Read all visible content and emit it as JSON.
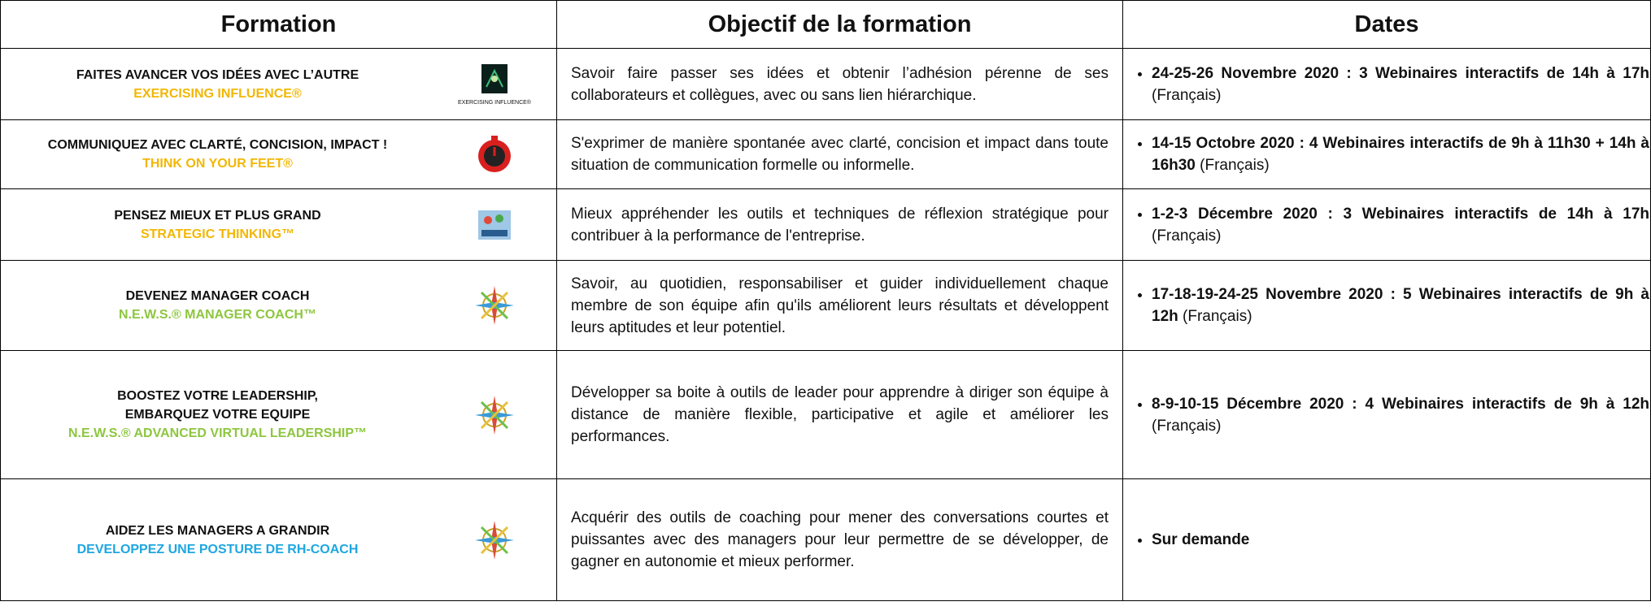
{
  "table": {
    "header": [
      "Formation",
      "Objectif de la formation",
      "Dates"
    ],
    "rows": [
      {
        "title": [
          "FAITES AVANCER VOS IDÉES AVEC L’AUTRE"
        ],
        "subtitle": "EXERCISING INFLUENCE®",
        "subtitle_color": "#f2b705",
        "icon": "influence",
        "icon_caption": "EXERCISING INFLUENCE®",
        "objective": "Savoir faire passer ses idées et obtenir l’adhésion pérenne de ses collaborateurs et collègues, avec ou sans lien hiérarchique.",
        "dates_bold": "24-25-26 Novembre 2020 : 3 Webinaires interactifs de 14h à 17h",
        "dates_note": "(Français)"
      },
      {
        "title": [
          "COMMUNIQUEZ AVEC CLARTÉ, CONCISION, IMPACT !"
        ],
        "subtitle": "THINK ON YOUR FEET®",
        "subtitle_color": "#f2b705",
        "icon": "timer",
        "objective": "S'exprimer de manière spontanée avec clarté, concision et impact dans toute situation de communication formelle ou informelle.",
        "dates_bold": "14-15 Octobre 2020 : 4 Webinaires interactifs de 9h à 11h30 + 14h à 16h30",
        "dates_note": "(Français)"
      },
      {
        "title": [
          "PENSEZ MIEUX ET PLUS GRAND"
        ],
        "subtitle": "STRATEGIC THINKING™",
        "subtitle_color": "#f2b705",
        "icon": "book",
        "objective": "Mieux appréhender les outils et techniques de réflexion stratégique pour contribuer à la performance de l'entreprise.",
        "dates_bold": "1-2-3 Décembre 2020 : 3 Webinaires interactifs de 14h à 17h",
        "dates_note": "(Français)"
      },
      {
        "title": [
          "DEVENEZ MANAGER COACH"
        ],
        "subtitle": "N.E.W.S.® MANAGER COACH™",
        "subtitle_color": "#8dc63f",
        "icon": "compass",
        "objective": "Savoir, au quotidien, responsabiliser et guider individuellement chaque membre de son équipe afin qu'ils améliorent leurs résultats et développent leurs aptitudes et leur potentiel.",
        "dates_bold": "17-18-19-24-25 Novembre 2020 : 5 Webinaires interactifs de 9h à 12h",
        "dates_note": "(Français)"
      },
      {
        "title": [
          "BOOSTEZ VOTRE LEADERSHIP,",
          "EMBARQUEZ VOTRE EQUIPE"
        ],
        "subtitle": "N.E.W.S.® ADVANCED VIRTUAL LEADERSHIP™",
        "subtitle_color": "#8dc63f",
        "icon": "compass",
        "objective": "Développer sa boite à outils de leader pour apprendre à diriger son équipe à distance de manière flexible, participative et agile et améliorer les performances.",
        "dates_bold": "8-9-10-15 Décembre 2020 : 4 Webinaires interactifs de 9h à 12h",
        "dates_note": "(Français)"
      },
      {
        "title": [
          "AIDEZ LES MANAGERS A GRANDIR"
        ],
        "subtitle": "DEVELOPPEZ UNE POSTURE DE RH-COACH",
        "subtitle_color": "#1ea7e1",
        "icon": "compass",
        "objective": "Acquérir des outils de coaching pour mener des conversations courtes et puissantes avec des managers pour leur permettre de se développer, de gagner en autonomie et mieux performer.",
        "dates_bold": "Sur demande"
      }
    ]
  }
}
